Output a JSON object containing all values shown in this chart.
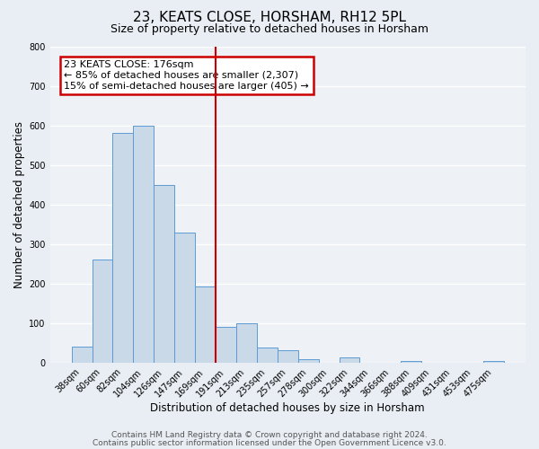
{
  "title": "23, KEATS CLOSE, HORSHAM, RH12 5PL",
  "subtitle": "Size of property relative to detached houses in Horsham",
  "xlabel": "Distribution of detached houses by size in Horsham",
  "ylabel": "Number of detached properties",
  "bin_labels": [
    "38sqm",
    "60sqm",
    "82sqm",
    "104sqm",
    "126sqm",
    "147sqm",
    "169sqm",
    "191sqm",
    "213sqm",
    "235sqm",
    "257sqm",
    "278sqm",
    "300sqm",
    "322sqm",
    "344sqm",
    "366sqm",
    "388sqm",
    "409sqm",
    "431sqm",
    "453sqm",
    "475sqm"
  ],
  "bar_heights": [
    40,
    262,
    580,
    598,
    450,
    330,
    193,
    90,
    100,
    38,
    32,
    10,
    0,
    13,
    0,
    0,
    5,
    0,
    0,
    0,
    5
  ],
  "bar_color": "#c9d9e8",
  "bar_edge_color": "#5b9bd5",
  "vline_color": "#cc0000",
  "annotation_box_text": "23 KEATS CLOSE: 176sqm\n← 85% of detached houses are smaller (2,307)\n15% of semi-detached houses are larger (405) →",
  "annotation_box_color": "#cc0000",
  "ylim": [
    0,
    800
  ],
  "yticks": [
    0,
    100,
    200,
    300,
    400,
    500,
    600,
    700,
    800
  ],
  "footer_line1": "Contains HM Land Registry data © Crown copyright and database right 2024.",
  "footer_line2": "Contains public sector information licensed under the Open Government Licence v3.0.",
  "bg_color": "#e8eef4",
  "plot_bg_color": "#eef2f7",
  "title_fontsize": 11,
  "subtitle_fontsize": 9,
  "axis_label_fontsize": 8.5,
  "tick_fontsize": 7,
  "footer_fontsize": 6.5,
  "annotation_fontsize": 8
}
